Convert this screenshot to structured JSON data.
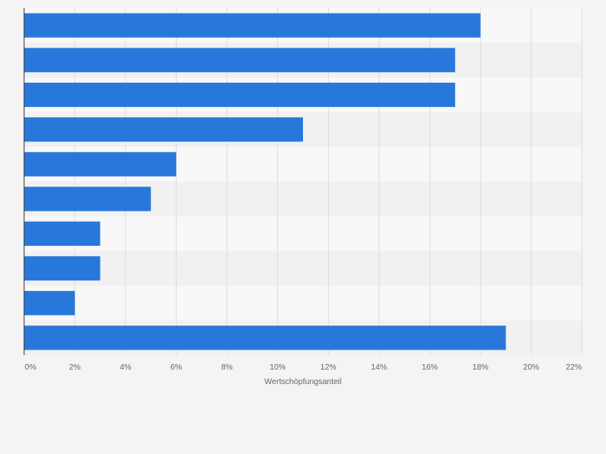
{
  "chart_data": {
    "type": "bar",
    "orientation": "horizontal",
    "xlabel": "Wertschöpfungsanteil",
    "xlim": [
      0,
      22
    ],
    "x_ticks": [
      "0%",
      "2%",
      "4%",
      "6%",
      "8%",
      "10%",
      "12%",
      "14%",
      "16%",
      "18%",
      "20%",
      "22%"
    ],
    "x_tick_values": [
      0,
      2,
      4,
      6,
      8,
      10,
      12,
      14,
      16,
      18,
      20,
      22
    ],
    "categories": [
      "",
      "",
      "",
      "",
      "",
      "",
      "",
      "",
      "",
      ""
    ],
    "values": [
      18,
      17,
      17,
      11,
      6,
      5,
      3,
      3,
      2,
      19
    ],
    "grid": true,
    "colors": {
      "bar": "#2878dc",
      "background": "#f4f4f4",
      "band_light": "#f8f8f8",
      "band_dark": "#f1f1f1",
      "grid": "#dddddd",
      "axis": "#333333",
      "text": "#666666"
    }
  }
}
